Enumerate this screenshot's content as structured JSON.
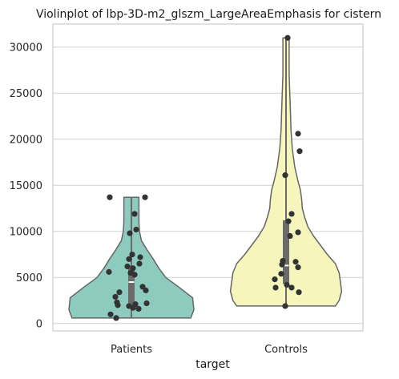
{
  "chart_data": {
    "type": "violin",
    "title": "Violinplot of lbp-3D-m2_glszm_LargeAreaEmphasis for cistern",
    "xlabel": "target",
    "ylabel": "",
    "categories": [
      "Patients",
      "Controls"
    ],
    "ylim": [
      -800,
      32500
    ],
    "y_ticks": [
      0,
      5000,
      10000,
      15000,
      20000,
      25000,
      30000
    ],
    "y_tick_labels": [
      "0",
      "5000",
      "10000",
      "15000",
      "20000",
      "25000",
      "30000"
    ],
    "grid": "horizontal",
    "colors": {
      "Patients": "#8ecbbf",
      "Controls": "#f6f5bc",
      "outline": "#666666",
      "points": "#333333",
      "box": "#6b6b6b",
      "grid": "#d0d0d0",
      "frame": "#cccccc"
    },
    "violins": [
      {
        "name": "Patients",
        "min": 600,
        "max": 13700,
        "q1": 2000,
        "median": 4500,
        "q3": 6300,
        "density": [
          [
            600,
            0.95
          ],
          [
            1500,
            1.0
          ],
          [
            2800,
            0.98
          ],
          [
            4000,
            0.75
          ],
          [
            5000,
            0.55
          ],
          [
            6000,
            0.44
          ],
          [
            7000,
            0.35
          ],
          [
            8000,
            0.25
          ],
          [
            9000,
            0.16
          ],
          [
            10000,
            0.13
          ],
          [
            11000,
            0.12
          ],
          [
            12000,
            0.12
          ],
          [
            13000,
            0.12
          ],
          [
            13700,
            0.12
          ]
        ],
        "points": [
          {
            "x": -0.27,
            "y": 13700
          },
          {
            "x": 0.17,
            "y": 13700
          },
          {
            "x": 0.04,
            "y": 11900
          },
          {
            "x": 0.06,
            "y": 10200
          },
          {
            "x": -0.02,
            "y": 9800
          },
          {
            "x": 0.01,
            "y": 7500
          },
          {
            "x": 0.11,
            "y": 7200
          },
          {
            "x": -0.03,
            "y": 7000
          },
          {
            "x": 0.1,
            "y": 6500
          },
          {
            "x": -0.05,
            "y": 6200
          },
          {
            "x": 0.02,
            "y": 6000
          },
          {
            "x": -0.28,
            "y": 5600
          },
          {
            "x": -0.01,
            "y": 5500
          },
          {
            "x": 0.04,
            "y": 5300
          },
          {
            "x": 0.14,
            "y": 4000
          },
          {
            "x": 0.18,
            "y": 3600
          },
          {
            "x": -0.15,
            "y": 3400
          },
          {
            "x": -0.2,
            "y": 2900
          },
          {
            "x": -0.18,
            "y": 2300
          },
          {
            "x": 0.19,
            "y": 2200
          },
          {
            "x": -0.17,
            "y": 2000
          },
          {
            "x": 0.05,
            "y": 2100
          },
          {
            "x": -0.03,
            "y": 1900
          },
          {
            "x": 0.02,
            "y": 1700
          },
          {
            "x": 0.09,
            "y": 1600
          },
          {
            "x": -0.26,
            "y": 1000
          },
          {
            "x": -0.19,
            "y": 600
          }
        ]
      },
      {
        "name": "Controls",
        "min": 1900,
        "max": 31000,
        "q1": 4300,
        "median": 6300,
        "q3": 11200,
        "density": [
          [
            1900,
            0.79
          ],
          [
            2500,
            0.85
          ],
          [
            3500,
            0.89
          ],
          [
            4500,
            0.87
          ],
          [
            5500,
            0.85
          ],
          [
            6500,
            0.79
          ],
          [
            7500,
            0.66
          ],
          [
            8500,
            0.55
          ],
          [
            9500,
            0.44
          ],
          [
            10500,
            0.35
          ],
          [
            11500,
            0.3
          ],
          [
            12500,
            0.26
          ],
          [
            13500,
            0.25
          ],
          [
            14500,
            0.23
          ],
          [
            15500,
            0.19
          ],
          [
            17000,
            0.14
          ],
          [
            19000,
            0.1
          ],
          [
            21000,
            0.08
          ],
          [
            23000,
            0.07
          ],
          [
            25000,
            0.06
          ],
          [
            27000,
            0.05
          ],
          [
            29000,
            0.05
          ],
          [
            31000,
            0.05
          ]
        ],
        "points": [
          {
            "x": 0.02,
            "y": 31000
          },
          {
            "x": 0.15,
            "y": 20600
          },
          {
            "x": 0.17,
            "y": 18700
          },
          {
            "x": -0.01,
            "y": 16100
          },
          {
            "x": 0.07,
            "y": 11900
          },
          {
            "x": 0.03,
            "y": 11100
          },
          {
            "x": 0.15,
            "y": 9900
          },
          {
            "x": 0.05,
            "y": 9500
          },
          {
            "x": -0.04,
            "y": 6800
          },
          {
            "x": 0.12,
            "y": 6700
          },
          {
            "x": -0.05,
            "y": 6400
          },
          {
            "x": 0.15,
            "y": 6100
          },
          {
            "x": -0.06,
            "y": 5400
          },
          {
            "x": -0.14,
            "y": 4800
          },
          {
            "x": 0.01,
            "y": 4200
          },
          {
            "x": 0.07,
            "y": 3900
          },
          {
            "x": -0.13,
            "y": 3900
          },
          {
            "x": 0.16,
            "y": 3400
          },
          {
            "x": -0.01,
            "y": 1900
          }
        ]
      }
    ]
  }
}
